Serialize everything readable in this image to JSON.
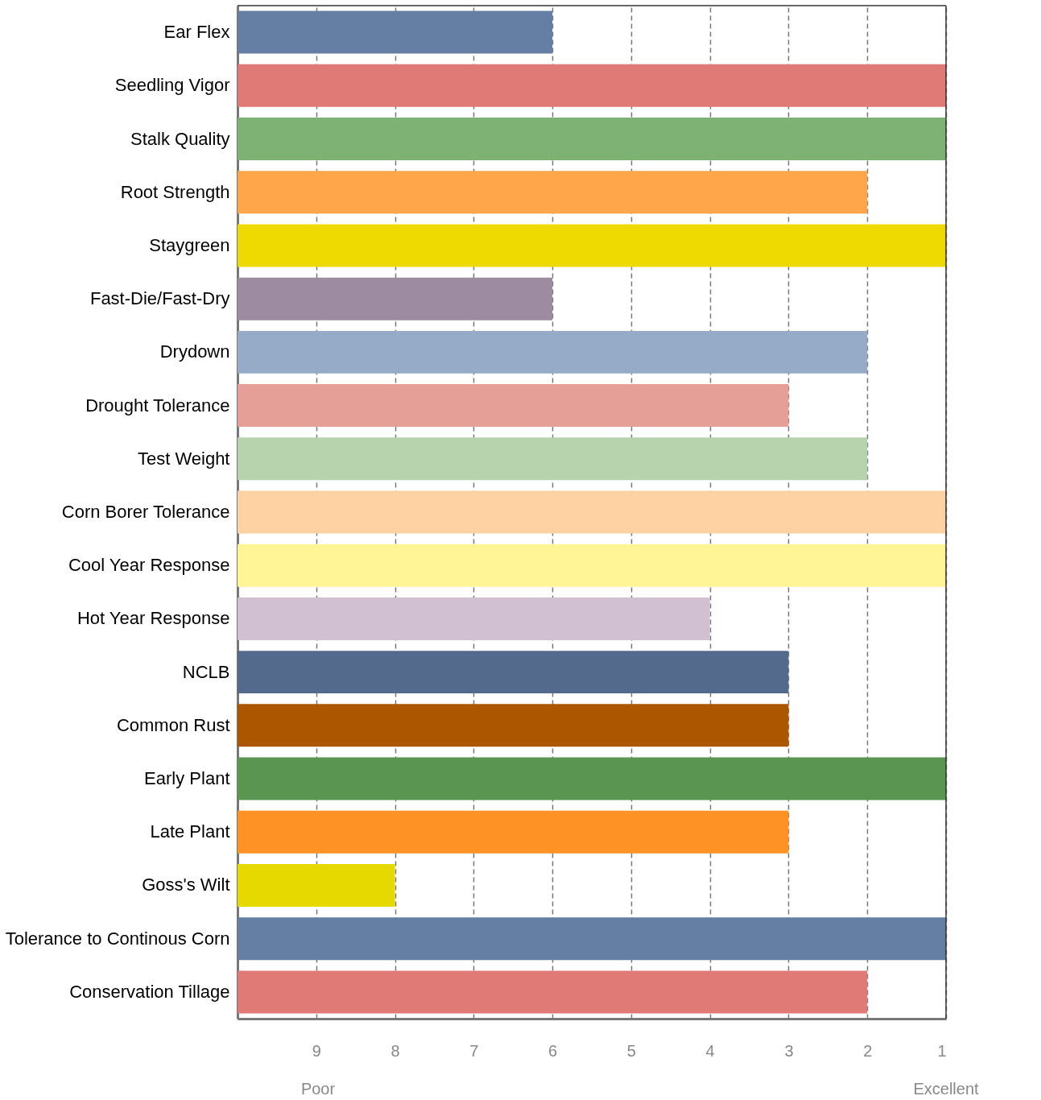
{
  "chart_data": {
    "type": "bar",
    "orientation": "horizontal",
    "categories": [
      "Ear Flex",
      "Seedling Vigor",
      "Stalk Quality",
      "Root Strength",
      "Staygreen",
      "Fast-Die/Fast-Dry",
      "Drydown",
      "Drought Tolerance",
      "Test Weight",
      "Corn Borer Tolerance",
      "Cool Year Response",
      "Hot Year Response",
      "NCLB",
      "Common Rust",
      "Early Plant",
      "Late Plant",
      "Goss's Wilt",
      "Tolerance to Continous Corn",
      "Conservation Tillage"
    ],
    "values": [
      -4,
      -9,
      -9,
      -8,
      -9,
      -4,
      -8,
      -7,
      -8,
      -9,
      -9,
      -6,
      -7,
      -7,
      -9,
      -7,
      -2,
      -9,
      -8
    ],
    "base": [
      10,
      10,
      10,
      10,
      10,
      10,
      10,
      10,
      10,
      10,
      10,
      10,
      10,
      10,
      10,
      10,
      10,
      10,
      10
    ],
    "colors": [
      "#647ea4",
      "#e07a76",
      "#7db274",
      "#ffa64b",
      "#eed900",
      "#9d8ba2",
      "#96abc8",
      "#e69f96",
      "#b6d3ae",
      "#ffd2a4",
      "#fff596",
      "#d1c0d1",
      "#546a8c",
      "#ad5600",
      "#5a9552",
      "#ff9224",
      "#e6d900",
      "#647ea4",
      "#e07a76"
    ],
    "xlim": [
      10,
      1
    ],
    "xticks": [
      9,
      8,
      7,
      6,
      5,
      4,
      3,
      2,
      1
    ],
    "grid": "x",
    "annotations": [
      "Poor",
      "Excellent"
    ]
  }
}
